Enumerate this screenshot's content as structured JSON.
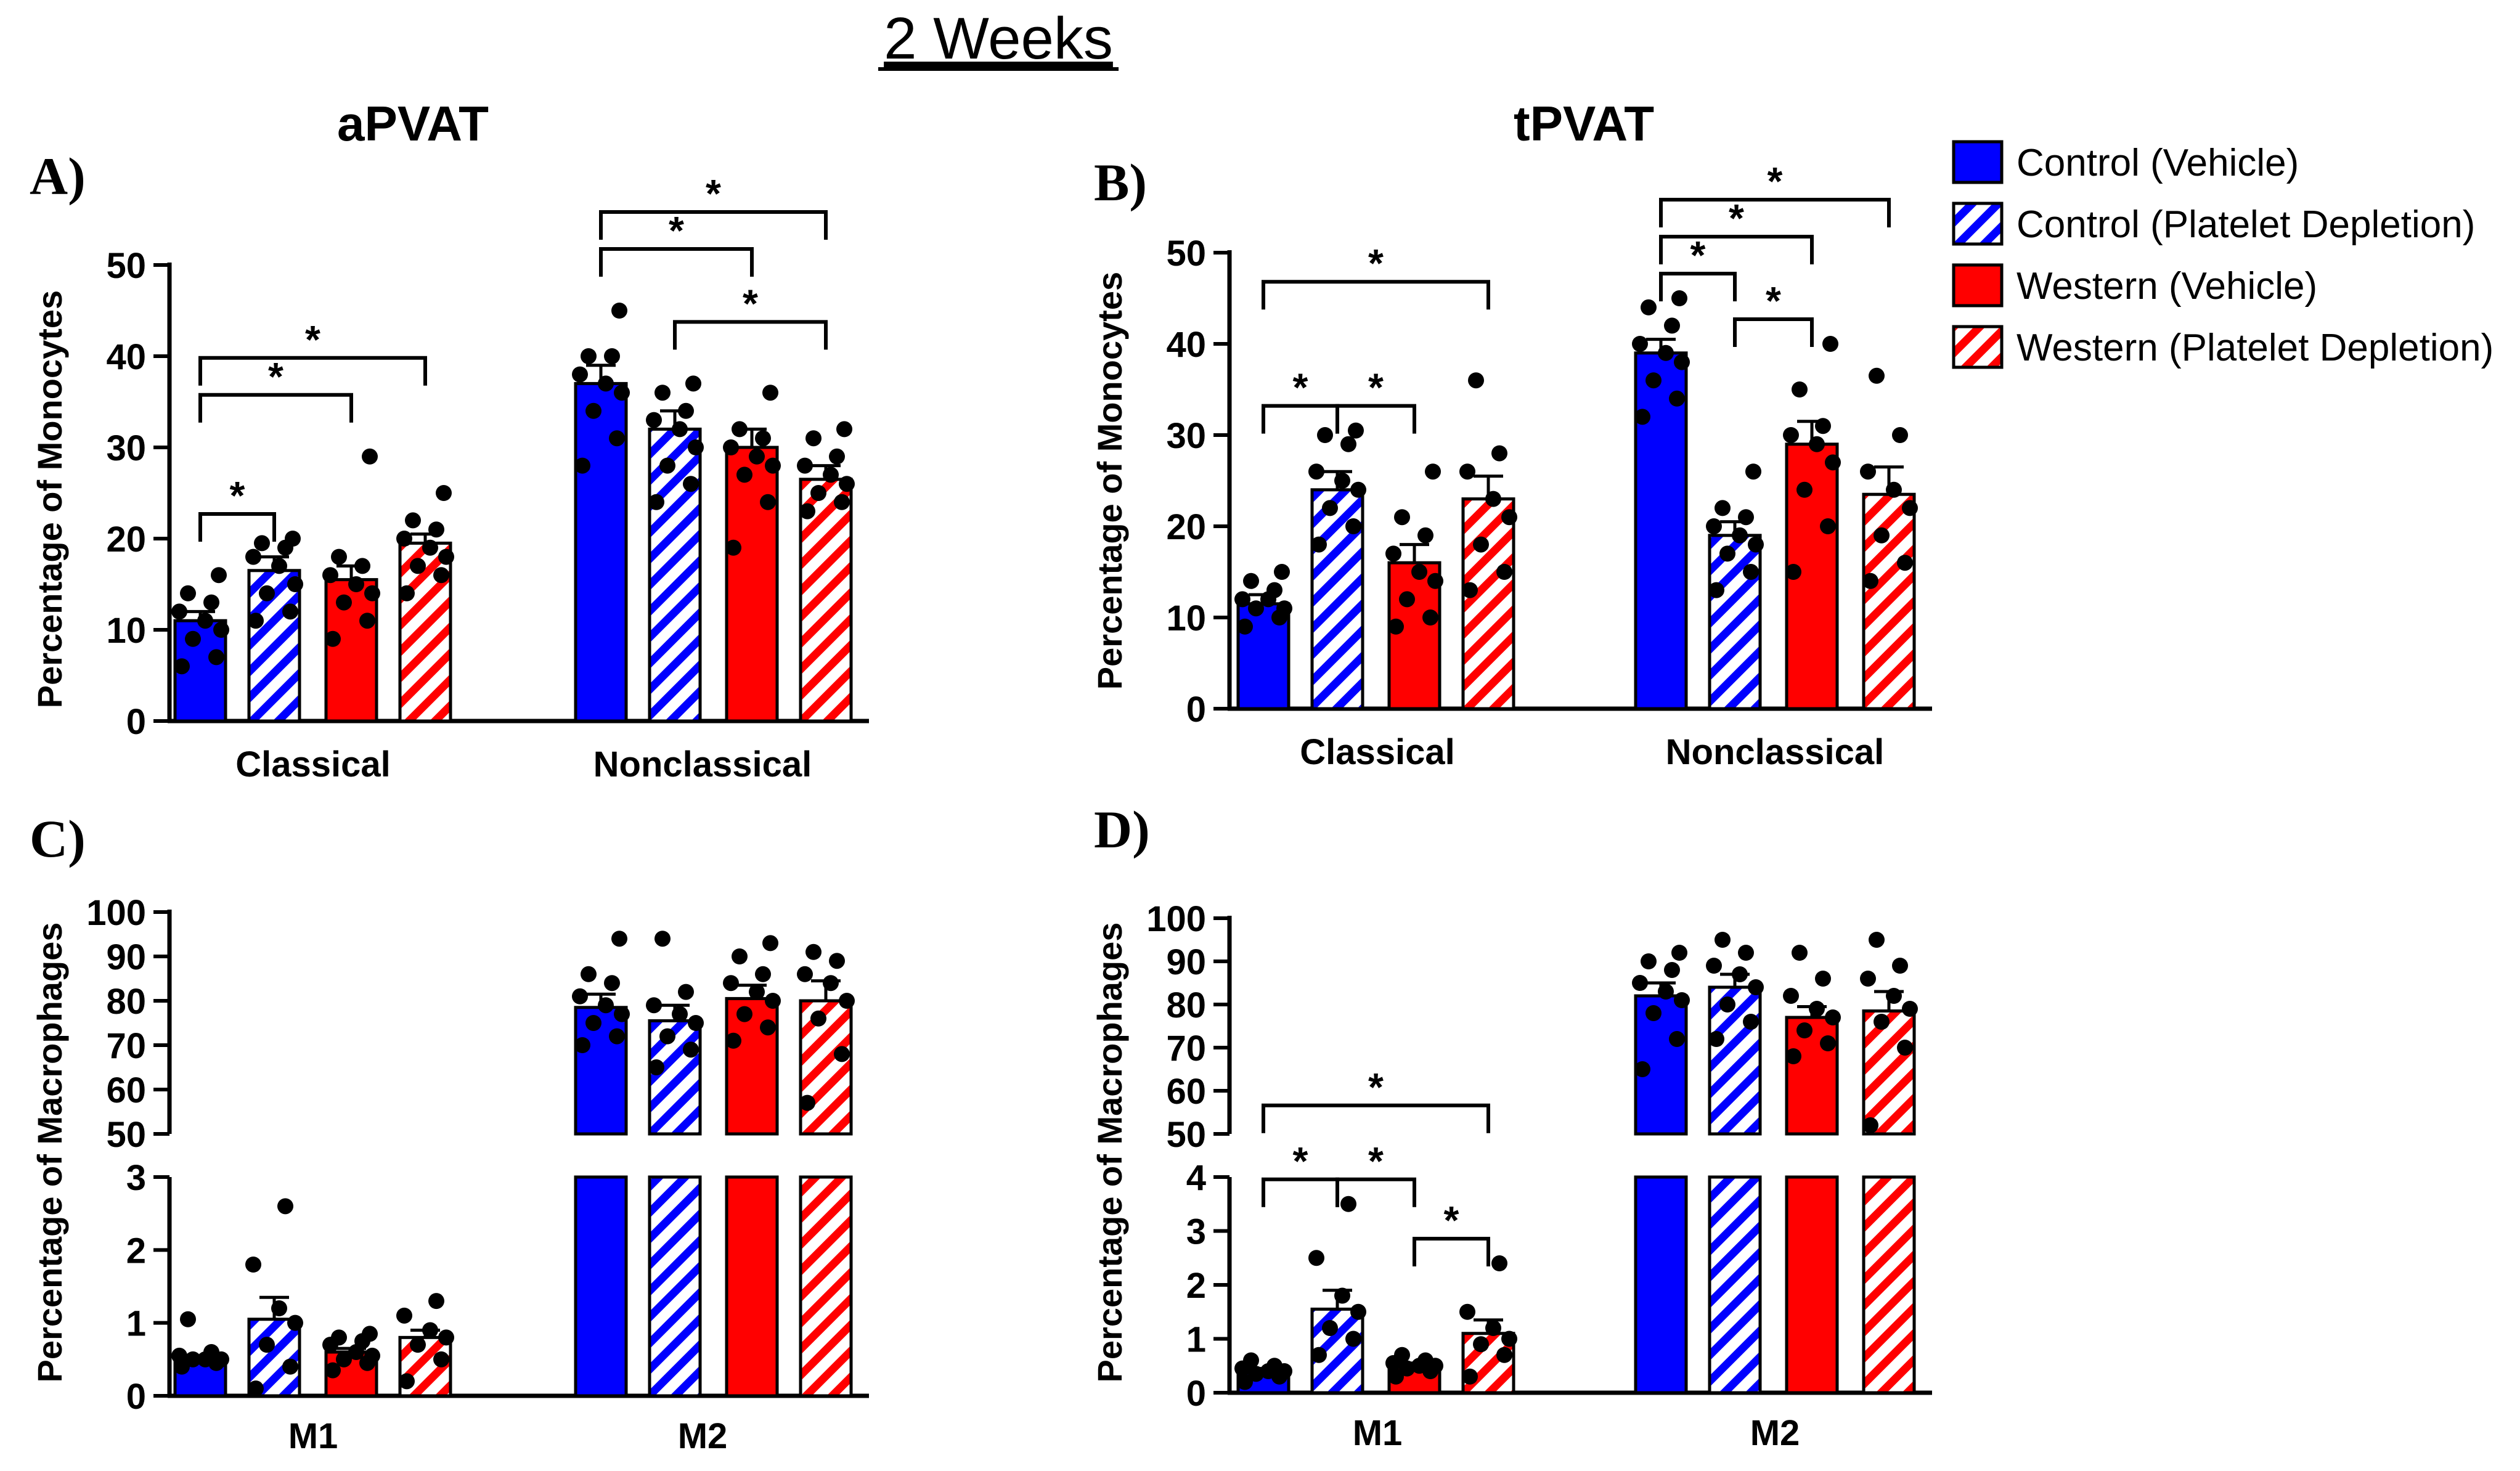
{
  "figure_title": "2 Weeks",
  "colors": {
    "blue": "#0000ff",
    "red": "#ff0000",
    "ink": "#000000"
  },
  "legend": [
    {
      "label": "Control (Vehicle)",
      "color": "blue",
      "hatched": false
    },
    {
      "label": "Control (Platelet Depletion)",
      "color": "blue",
      "hatched": true
    },
    {
      "label": "Western (Vehicle)",
      "color": "red",
      "hatched": false
    },
    {
      "label": "Western (Platelet Depletion)",
      "color": "red",
      "hatched": true
    }
  ],
  "column_titles": [
    "aPVAT",
    "tPVAT"
  ],
  "chart_data": [
    {
      "panel": "A)",
      "type": "bar",
      "ylabel": "Percentage of Monocytes",
      "ylim": [
        0,
        50
      ],
      "yticks": [
        0,
        10,
        20,
        30,
        40,
        50
      ],
      "categories": [
        "Classical",
        "Nonclassical"
      ],
      "series": [
        {
          "name": "Control (Vehicle)",
          "values": [
            11,
            37
          ],
          "sem": [
            1,
            2
          ],
          "points": [
            [
              6,
              7,
              9,
              10,
              11,
              12,
              13,
              14,
              16
            ],
            [
              28,
              31,
              34,
              36,
              37,
              38,
              40,
              40,
              45
            ]
          ]
        },
        {
          "name": "Control (Platelet Depletion)",
          "values": [
            16.5,
            32
          ],
          "sem": [
            1.5,
            2
          ],
          "points": [
            [
              11,
              12,
              14,
              15,
              17,
              18,
              19,
              19.5,
              20
            ],
            [
              24,
              26,
              28,
              30,
              32,
              33,
              34,
              36,
              37
            ]
          ]
        },
        {
          "name": "Western (Vehicle)",
          "values": [
            15.5,
            30
          ],
          "sem": [
            1.5,
            2
          ],
          "points": [
            [
              9,
              11,
              13,
              14,
              15,
              16,
              17,
              18,
              29
            ],
            [
              19,
              24,
              27,
              28,
              29,
              30,
              31,
              32,
              36
            ]
          ]
        },
        {
          "name": "Western (Platelet Depletion)",
          "values": [
            19.5,
            26.5
          ],
          "sem": [
            1,
            1.5
          ],
          "points": [
            [
              14,
              16,
              17,
              18,
              19,
              20,
              21,
              22,
              25
            ],
            [
              23,
              24,
              25,
              26,
              27,
              28,
              29,
              31,
              32
            ]
          ]
        }
      ],
      "significance": [
        {
          "group": 0,
          "from": 0,
          "to": 1,
          "label": "*"
        },
        {
          "group": 0,
          "from": 0,
          "to": 2,
          "label": "*"
        },
        {
          "group": 0,
          "from": 0,
          "to": 3,
          "label": "*"
        },
        {
          "group": 1,
          "from": 0,
          "to": 2,
          "label": "*"
        },
        {
          "group": 1,
          "from": 0,
          "to": 3,
          "label": "*"
        },
        {
          "group": 1,
          "from": 1,
          "to": 3,
          "label": "*"
        }
      ]
    },
    {
      "panel": "B)",
      "type": "bar",
      "ylabel": "Percentage of Monocytes",
      "ylim": [
        0,
        50
      ],
      "yticks": [
        0,
        10,
        20,
        30,
        40,
        50
      ],
      "categories": [
        "Classical",
        "Nonclassical"
      ],
      "series": [
        {
          "name": "Control (Vehicle)",
          "values": [
            11.5,
            39
          ],
          "sem": [
            1,
            1.5
          ],
          "points": [
            [
              9,
              10,
              11,
              11,
              12,
              12,
              13,
              14,
              15
            ],
            [
              32,
              34,
              36,
              38,
              39,
              40,
              42,
              44,
              45
            ]
          ]
        },
        {
          "name": "Control (Platelet Depletion)",
          "values": [
            24,
            19
          ],
          "sem": [
            2,
            1.5
          ],
          "points": [
            [
              18,
              20,
              22,
              24,
              25,
              26,
              29,
              30,
              30.5
            ],
            [
              13,
              15,
              17,
              18,
              19,
              20,
              21,
              22,
              26
            ]
          ]
        },
        {
          "name": "Western (Vehicle)",
          "values": [
            16,
            29
          ],
          "sem": [
            2,
            2.5
          ],
          "points": [
            [
              9,
              10,
              12,
              14,
              15,
              17,
              19,
              21,
              26
            ],
            [
              15,
              20,
              24,
              27,
              29,
              30,
              31,
              35,
              40
            ]
          ]
        },
        {
          "name": "Western (Platelet Depletion)",
          "values": [
            23,
            23.5
          ],
          "sem": [
            2.5,
            3
          ],
          "points": [
            [
              13,
              15,
              18,
              21,
              23,
              26,
              28,
              36
            ],
            [
              14,
              16,
              19,
              22,
              24,
              26,
              30,
              36.5
            ]
          ]
        }
      ],
      "significance": [
        {
          "group": 0,
          "from": 0,
          "to": 1,
          "label": "*"
        },
        {
          "group": 0,
          "from": 1,
          "to": 2,
          "label": "*"
        },
        {
          "group": 0,
          "from": 0,
          "to": 3,
          "label": "*"
        },
        {
          "group": 1,
          "from": 0,
          "to": 1,
          "label": "*"
        },
        {
          "group": 1,
          "from": 0,
          "to": 2,
          "label": "*"
        },
        {
          "group": 1,
          "from": 0,
          "to": 3,
          "label": "*"
        },
        {
          "group": 1,
          "from": 1,
          "to": 2,
          "label": "*"
        }
      ]
    },
    {
      "panel": "C)",
      "type": "bar",
      "ylabel": "Percentage of Macrophages",
      "broken_axis": {
        "lower_ylim": [
          0,
          3
        ],
        "lower_ticks": [
          0,
          1,
          2,
          3
        ],
        "upper_ylim": [
          50,
          100
        ],
        "upper_ticks": [
          50,
          60,
          70,
          80,
          90,
          100
        ]
      },
      "categories": [
        "M1",
        "M2"
      ],
      "series": [
        {
          "name": "Control (Vehicle)",
          "values": [
            0.5,
            78.5
          ],
          "sem": [
            0.05,
            3
          ],
          "points": [
            [
              0.4,
              0.45,
              0.5,
              0.5,
              0.5,
              0.55,
              0.6,
              1.05
            ],
            [
              70,
              72,
              75,
              77,
              79,
              81,
              84,
              86,
              94
            ]
          ]
        },
        {
          "name": "Control (Platelet Depletion)",
          "values": [
            1.05,
            75.5
          ],
          "sem": [
            0.3,
            3.5
          ],
          "points": [
            [
              0.1,
              0.4,
              0.7,
              1.0,
              1.2,
              1.8,
              2.6
            ],
            [
              65,
              69,
              72,
              75,
              77,
              79,
              82,
              94
            ]
          ]
        },
        {
          "name": "Western (Vehicle)",
          "values": [
            0.6,
            80.5
          ],
          "sem": [
            0.05,
            3
          ],
          "points": [
            [
              0.35,
              0.45,
              0.5,
              0.55,
              0.6,
              0.7,
              0.75,
              0.8,
              0.85
            ],
            [
              71,
              74,
              77,
              80,
              82,
              84,
              86,
              90,
              93
            ]
          ]
        },
        {
          "name": "Western (Platelet Depletion)",
          "values": [
            0.8,
            80
          ],
          "sem": [
            0.1,
            4.5
          ],
          "points": [
            [
              0.2,
              0.5,
              0.7,
              0.8,
              0.9,
              1.1,
              1.3
            ],
            [
              57,
              68,
              76,
              80,
              84,
              86,
              89,
              91
            ]
          ]
        }
      ],
      "significance": []
    },
    {
      "panel": "D)",
      "type": "bar",
      "ylabel": "Percentage of Macrophages",
      "broken_axis": {
        "lower_ylim": [
          0,
          4
        ],
        "lower_ticks": [
          0,
          1,
          2,
          3,
          4
        ],
        "upper_ylim": [
          50,
          100
        ],
        "upper_ticks": [
          50,
          60,
          70,
          80,
          90,
          100
        ]
      },
      "categories": [
        "M1",
        "M2"
      ],
      "series": [
        {
          "name": "Control (Vehicle)",
          "values": [
            0.4,
            82
          ],
          "sem": [
            0.05,
            3
          ],
          "points": [
            [
              0.2,
              0.3,
              0.35,
              0.4,
              0.4,
              0.45,
              0.5,
              0.6
            ],
            [
              65,
              72,
              78,
              81,
              83,
              85,
              88,
              90,
              92
            ]
          ]
        },
        {
          "name": "Control (Platelet Depletion)",
          "values": [
            1.55,
            84
          ],
          "sem": [
            0.35,
            3
          ],
          "points": [
            [
              0.7,
              1.0,
              1.2,
              1.5,
              1.8,
              2.5,
              3.5
            ],
            [
              72,
              76,
              80,
              84,
              87,
              89,
              92,
              95
            ]
          ]
        },
        {
          "name": "Western (Vehicle)",
          "values": [
            0.5,
            77
          ],
          "sem": [
            0.05,
            2.5
          ],
          "points": [
            [
              0.3,
              0.4,
              0.45,
              0.5,
              0.5,
              0.55,
              0.6,
              0.7
            ],
            [
              68,
              71,
              74,
              77,
              79,
              82,
              86,
              92
            ]
          ]
        },
        {
          "name": "Western (Platelet Depletion)",
          "values": [
            1.1,
            78.5
          ],
          "sem": [
            0.25,
            4.5
          ],
          "points": [
            [
              0.3,
              0.7,
              0.9,
              1.0,
              1.2,
              1.5,
              2.4
            ],
            [
              52,
              70,
              76,
              79,
              82,
              86,
              89,
              95
            ]
          ]
        }
      ],
      "significance": [
        {
          "group": 0,
          "from": 0,
          "to": 1,
          "label": "*"
        },
        {
          "group": 0,
          "from": 1,
          "to": 2,
          "label": "*"
        },
        {
          "group": 0,
          "from": 2,
          "to": 3,
          "label": "*"
        },
        {
          "group": 0,
          "from": 0,
          "to": 3,
          "label": "*"
        }
      ]
    }
  ]
}
